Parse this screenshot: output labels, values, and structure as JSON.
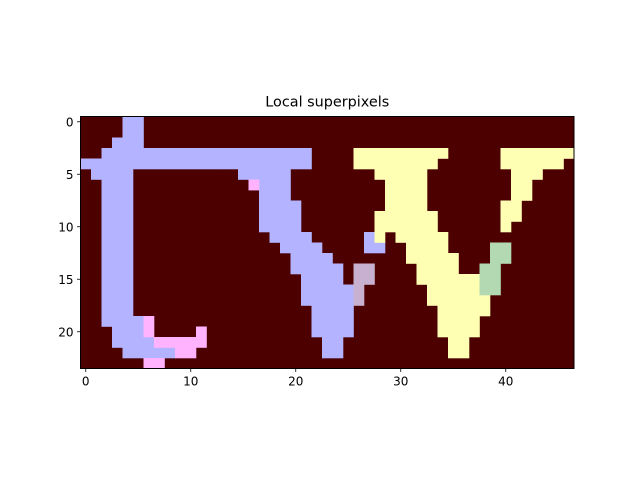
{
  "chart_data": {
    "type": "heatmap",
    "title": "Local superpixels",
    "xlabel": "",
    "ylabel": "",
    "grid_size": {
      "rows": 24,
      "cols": 47
    },
    "xlim": [
      -0.5,
      46.5
    ],
    "ylim": [
      23.5,
      -0.5
    ],
    "x_ticks": [
      0,
      10,
      20,
      30,
      40
    ],
    "y_ticks": [
      0,
      5,
      10,
      15,
      20
    ],
    "x_tick_labels": [
      "0",
      "10",
      "20",
      "30",
      "40"
    ],
    "y_tick_labels": [
      "0",
      "5",
      "10",
      "15",
      "20"
    ],
    "grid": false,
    "background_color": "#4c0000",
    "colors": {
      "lavender": "#b3b3ff",
      "pink": "#ffb3ff",
      "yellow": "#ffffb3",
      "green": "#b3d9b3",
      "mauve": "#c8b0d0"
    },
    "segments": [
      {
        "color": "lavender",
        "cells": [
          [
            0,
            4,
            5
          ],
          [
            1,
            4,
            5
          ],
          [
            2,
            3,
            5
          ],
          [
            3,
            2,
            21
          ],
          [
            4,
            0,
            12
          ],
          [
            4,
            13,
            21
          ],
          [
            5,
            1,
            4
          ],
          [
            5,
            15,
            19
          ],
          [
            6,
            2,
            4
          ],
          [
            6,
            16,
            19
          ],
          [
            7,
            2,
            4
          ],
          [
            7,
            17,
            19
          ],
          [
            8,
            2,
            4
          ],
          [
            8,
            17,
            20
          ],
          [
            9,
            2,
            4
          ],
          [
            9,
            17,
            20
          ],
          [
            10,
            2,
            4
          ],
          [
            10,
            17,
            20
          ],
          [
            11,
            2,
            4
          ],
          [
            11,
            18,
            21
          ],
          [
            11,
            27,
            27
          ],
          [
            12,
            2,
            4
          ],
          [
            12,
            19,
            22
          ],
          [
            12,
            27,
            28
          ],
          [
            13,
            2,
            4
          ],
          [
            13,
            20,
            23
          ],
          [
            14,
            2,
            4
          ],
          [
            14,
            20,
            24
          ],
          [
            15,
            2,
            4
          ],
          [
            15,
            21,
            24
          ],
          [
            16,
            2,
            4
          ],
          [
            16,
            21,
            25
          ],
          [
            17,
            2,
            4
          ],
          [
            17,
            21,
            25
          ],
          [
            18,
            2,
            4
          ],
          [
            18,
            22,
            25
          ],
          [
            19,
            2,
            5
          ],
          [
            19,
            22,
            25
          ],
          [
            20,
            3,
            5
          ],
          [
            20,
            22,
            25
          ],
          [
            21,
            3,
            6
          ],
          [
            21,
            23,
            24
          ],
          [
            22,
            4,
            8
          ],
          [
            22,
            23,
            24
          ]
        ]
      },
      {
        "color": "pink",
        "cells": [
          [
            6,
            16,
            16
          ],
          [
            19,
            6,
            6
          ],
          [
            20,
            6,
            6
          ],
          [
            20,
            11,
            11
          ],
          [
            21,
            7,
            11
          ],
          [
            22,
            9,
            10
          ],
          [
            23,
            6,
            7
          ]
        ]
      },
      {
        "color": "yellow",
        "cells": [
          [
            3,
            26,
            34
          ],
          [
            3,
            40,
            46
          ],
          [
            4,
            26,
            33
          ],
          [
            4,
            40,
            45
          ],
          [
            5,
            28,
            32
          ],
          [
            5,
            41,
            43
          ],
          [
            6,
            29,
            32
          ],
          [
            6,
            41,
            42
          ],
          [
            7,
            29,
            32
          ],
          [
            7,
            41,
            42
          ],
          [
            8,
            29,
            32
          ],
          [
            8,
            40,
            41
          ],
          [
            9,
            28,
            33
          ],
          [
            9,
            40,
            41
          ],
          [
            10,
            28,
            33
          ],
          [
            10,
            40,
            40
          ],
          [
            11,
            28,
            28
          ],
          [
            11,
            30,
            34
          ],
          [
            12,
            31,
            34
          ],
          [
            13,
            31,
            35
          ],
          [
            14,
            32,
            35
          ],
          [
            15,
            32,
            37
          ],
          [
            16,
            33,
            37
          ],
          [
            17,
            33,
            38
          ],
          [
            18,
            34,
            38
          ],
          [
            19,
            34,
            37
          ],
          [
            20,
            34,
            37
          ],
          [
            21,
            35,
            36
          ],
          [
            22,
            35,
            36
          ]
        ]
      },
      {
        "color": "green",
        "cells": [
          [
            12,
            39,
            40
          ],
          [
            13,
            39,
            40
          ],
          [
            14,
            38,
            39
          ],
          [
            15,
            38,
            39
          ],
          [
            16,
            38,
            39
          ]
        ]
      },
      {
        "color": "mauve",
        "cells": [
          [
            14,
            26,
            27
          ],
          [
            15,
            26,
            27
          ],
          [
            16,
            26,
            26
          ],
          [
            17,
            26,
            26
          ]
        ]
      }
    ]
  }
}
